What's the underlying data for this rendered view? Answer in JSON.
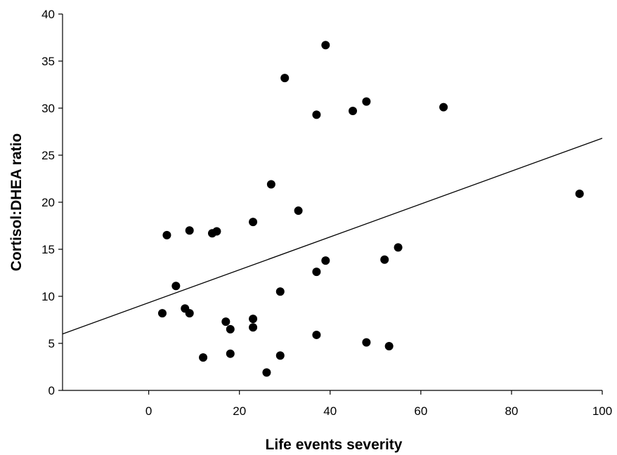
{
  "chart_data": {
    "type": "scatter",
    "title": "",
    "xlabel": "Life events severity",
    "ylabel": "Cortisol:DHEA ratio",
    "xlim": [
      -19,
      100
    ],
    "ylim": [
      0,
      40
    ],
    "x_ticks": [
      0,
      20,
      40,
      60,
      80,
      100
    ],
    "y_ticks": [
      0,
      5,
      10,
      15,
      20,
      25,
      30,
      35,
      40
    ],
    "grid": false,
    "legend": "none",
    "marker_color": "#000000",
    "points": [
      {
        "x": 3,
        "y": 8.2
      },
      {
        "x": 4,
        "y": 16.5
      },
      {
        "x": 6,
        "y": 11.1
      },
      {
        "x": 8,
        "y": 8.7
      },
      {
        "x": 9,
        "y": 17.0
      },
      {
        "x": 9,
        "y": 8.2
      },
      {
        "x": 12,
        "y": 3.5
      },
      {
        "x": 14,
        "y": 16.7
      },
      {
        "x": 15,
        "y": 16.9
      },
      {
        "x": 17,
        "y": 7.3
      },
      {
        "x": 18,
        "y": 6.5
      },
      {
        "x": 18,
        "y": 3.9
      },
      {
        "x": 23,
        "y": 17.9
      },
      {
        "x": 23,
        "y": 7.6
      },
      {
        "x": 23,
        "y": 6.7
      },
      {
        "x": 26,
        "y": 1.9
      },
      {
        "x": 27,
        "y": 21.9
      },
      {
        "x": 29,
        "y": 10.5
      },
      {
        "x": 29,
        "y": 3.7
      },
      {
        "x": 30,
        "y": 33.2
      },
      {
        "x": 33,
        "y": 19.1
      },
      {
        "x": 37,
        "y": 29.3
      },
      {
        "x": 37,
        "y": 12.6
      },
      {
        "x": 37,
        "y": 5.9
      },
      {
        "x": 39,
        "y": 36.7
      },
      {
        "x": 39,
        "y": 13.8
      },
      {
        "x": 45,
        "y": 29.7
      },
      {
        "x": 48,
        "y": 30.7
      },
      {
        "x": 48,
        "y": 5.1
      },
      {
        "x": 52,
        "y": 13.9
      },
      {
        "x": 53,
        "y": 4.7
      },
      {
        "x": 55,
        "y": 15.2
      },
      {
        "x": 65,
        "y": 30.1
      },
      {
        "x": 95,
        "y": 20.9
      }
    ],
    "trend_line": {
      "x": [
        -19,
        100
      ],
      "y": [
        6.0,
        26.8
      ]
    }
  }
}
